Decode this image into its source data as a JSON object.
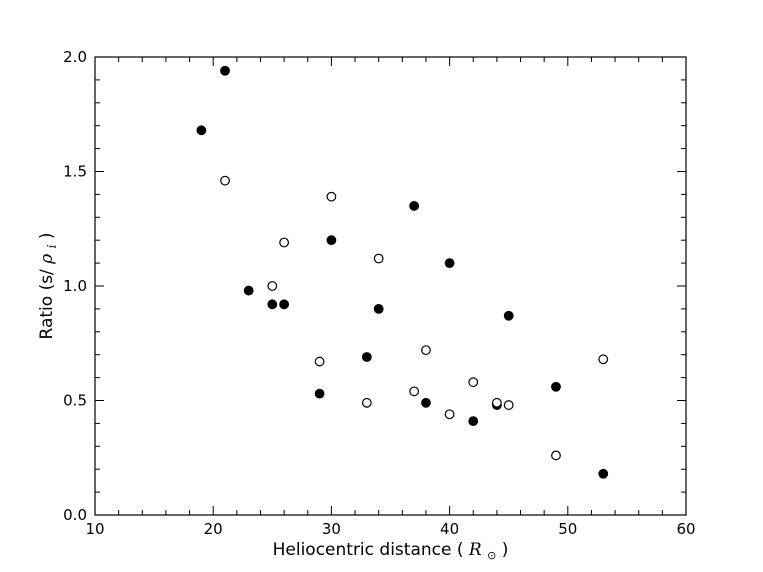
{
  "chart_data": {
    "type": "scatter",
    "xlabel": "Heliocentric distance",
    "xlabel_unit": "R",
    "ylabel": "Ratio (s/",
    "ylabel_symbol": "ρ",
    "ylabel_subscript": "i",
    "xlim": [
      10,
      60
    ],
    "ylim": [
      0.0,
      2.0
    ],
    "xticks": [
      "10",
      "20",
      "30",
      "40",
      "50",
      "60"
    ],
    "yticks": [
      "0.0",
      "0.5",
      "1.0",
      "1.5",
      "2.0"
    ],
    "grid": false,
    "series": [
      {
        "marker": "filled-circle",
        "color": "#000000",
        "points": [
          [
            19,
            1.68
          ],
          [
            21,
            1.94
          ],
          [
            23,
            0.98
          ],
          [
            25,
            0.92
          ],
          [
            26,
            0.92
          ],
          [
            29,
            0.53
          ],
          [
            30,
            1.2
          ],
          [
            33,
            0.69
          ],
          [
            34,
            0.9
          ],
          [
            37,
            1.35
          ],
          [
            38,
            0.49
          ],
          [
            40,
            1.1
          ],
          [
            42,
            0.41
          ],
          [
            44,
            0.48
          ],
          [
            45,
            0.87
          ],
          [
            49,
            0.56
          ],
          [
            53,
            0.18
          ]
        ]
      },
      {
        "marker": "open-circle",
        "color": "#000000",
        "points": [
          [
            21,
            1.46
          ],
          [
            25,
            1.0
          ],
          [
            26,
            1.19
          ],
          [
            29,
            0.67
          ],
          [
            30,
            1.39
          ],
          [
            33,
            0.49
          ],
          [
            34,
            1.12
          ],
          [
            37,
            0.54
          ],
          [
            38,
            0.72
          ],
          [
            40,
            0.44
          ],
          [
            42,
            0.58
          ],
          [
            44,
            0.49
          ],
          [
            45,
            0.48
          ],
          [
            49,
            0.26
          ],
          [
            53,
            0.68
          ]
        ]
      }
    ]
  }
}
